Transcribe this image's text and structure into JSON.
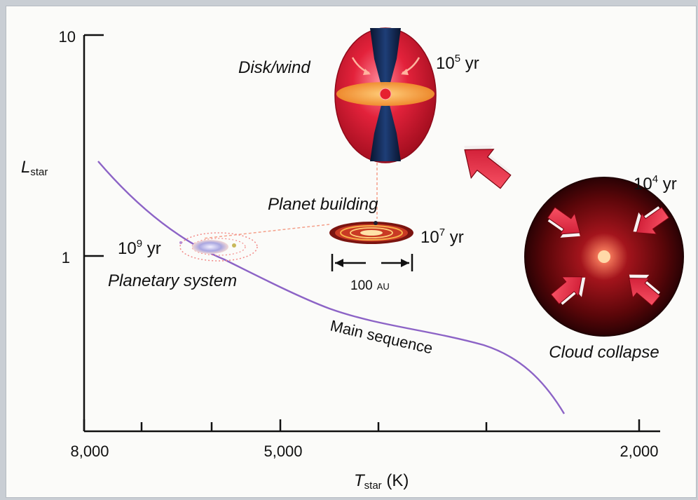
{
  "axes": {
    "y_label_main": "L",
    "y_label_sub": "star",
    "x_label_main": "T",
    "x_label_sub": "star",
    "x_label_unit": " (K)",
    "y_ticks": [
      "10",
      "1"
    ],
    "x_ticks": [
      "8,000",
      "5,000",
      "2,000"
    ]
  },
  "curve": {
    "label": "Main sequence",
    "color": "#8c63c6"
  },
  "stages": {
    "cloud": {
      "label": "Cloud collapse",
      "age_base": "10",
      "age_exp": "4",
      "age_unit": " yr"
    },
    "disk": {
      "label": "Disk/wind",
      "age_base": "10",
      "age_exp": "5",
      "age_unit": " yr"
    },
    "planet": {
      "label": "Planet building",
      "age_base": "10",
      "age_exp": "7",
      "age_unit": " yr",
      "scale_value": "100",
      "scale_unit": "AU"
    },
    "system": {
      "label": "Planetary system",
      "age_base": "10",
      "age_exp": "9",
      "age_unit": " yr"
    }
  },
  "colors": {
    "arrow_red": "#e3213c",
    "cloud_dark": "#3a0306",
    "disk_red": "#d8233a",
    "disk_orange": "#f4a93a",
    "jet_navy": "#0c1c3a"
  }
}
